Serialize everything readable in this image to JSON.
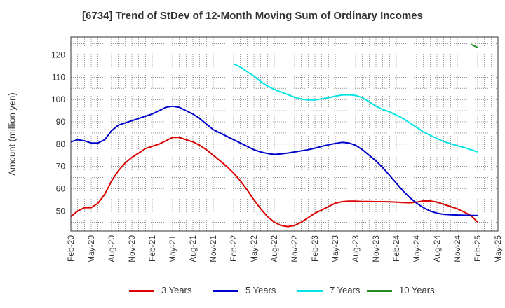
{
  "chart_data": {
    "type": "line",
    "title": "[6734]  Trend of StDev of 12-Month Moving Sum of Ordinary Incomes",
    "xlabel": "",
    "ylabel": "Amount (million yen)",
    "ylim": [
      41,
      128
    ],
    "y_ticks": [
      50,
      60,
      70,
      80,
      90,
      100,
      110,
      120
    ],
    "x_range": [
      "2020-02",
      "2025-05"
    ],
    "x_tick_labels": [
      "Feb-20",
      "May-20",
      "Aug-20",
      "Nov-20",
      "Feb-21",
      "May-21",
      "Aug-21",
      "Nov-21",
      "Feb-22",
      "May-22",
      "Aug-22",
      "Nov-22",
      "Feb-23",
      "May-23",
      "Aug-23",
      "Nov-23",
      "Feb-24",
      "May-24",
      "Aug-24",
      "Nov-24",
      "Feb-25",
      "May-25"
    ],
    "grid": true,
    "legend_position": "bottom",
    "series": [
      {
        "name": "3 Years",
        "color": "#dd0000",
        "x": [
          "2020-02",
          "2020-03",
          "2020-04",
          "2020-05",
          "2020-06",
          "2020-07",
          "2020-08",
          "2020-09",
          "2020-10",
          "2020-11",
          "2020-12",
          "2021-01",
          "2021-02",
          "2021-03",
          "2021-04",
          "2021-05",
          "2021-06",
          "2021-07",
          "2021-08",
          "2021-09",
          "2021-10",
          "2021-11",
          "2021-12",
          "2022-01",
          "2022-02",
          "2022-03",
          "2022-04",
          "2022-05",
          "2022-06",
          "2022-07",
          "2022-08",
          "2022-09",
          "2022-10",
          "2022-11",
          "2022-12",
          "2023-01",
          "2023-02",
          "2023-03",
          "2023-04",
          "2023-05",
          "2023-06",
          "2023-07",
          "2023-08",
          "2023-09",
          "2023-10",
          "2023-11",
          "2023-12",
          "2024-01",
          "2024-02",
          "2024-03",
          "2024-04",
          "2024-05",
          "2024-06",
          "2024-07",
          "2024-08",
          "2024-09",
          "2024-10",
          "2024-11",
          "2024-12",
          "2025-01",
          "2025-02"
        ],
        "values": [
          47.5,
          50,
          51.5,
          51.5,
          53.5,
          57.5,
          63.5,
          68,
          71.5,
          74,
          76,
          78,
          79,
          80,
          81.5,
          83,
          83,
          82,
          81,
          79.5,
          77.5,
          75,
          72.5,
          70,
          67,
          63.5,
          59.5,
          55,
          51,
          47.5,
          45,
          43.5,
          43,
          43.5,
          45,
          47,
          49,
          50.5,
          52,
          53.5,
          54.2,
          54.4,
          54.4,
          54.3,
          54.3,
          54.2,
          54.2,
          54.1,
          54,
          53.8,
          53.7,
          54,
          54.5,
          54.5,
          54,
          53,
          52,
          51,
          49.5,
          48,
          45
        ]
      },
      {
        "name": "5 Years",
        "color": "#0000cc",
        "x": [
          "2020-02",
          "2020-03",
          "2020-04",
          "2020-05",
          "2020-06",
          "2020-07",
          "2020-08",
          "2020-09",
          "2020-10",
          "2020-11",
          "2020-12",
          "2021-01",
          "2021-02",
          "2021-03",
          "2021-04",
          "2021-05",
          "2021-06",
          "2021-07",
          "2021-08",
          "2021-09",
          "2021-10",
          "2021-11",
          "2021-12",
          "2022-01",
          "2022-02",
          "2022-03",
          "2022-04",
          "2022-05",
          "2022-06",
          "2022-07",
          "2022-08",
          "2022-09",
          "2022-10",
          "2022-11",
          "2022-12",
          "2023-01",
          "2023-02",
          "2023-03",
          "2023-04",
          "2023-05",
          "2023-06",
          "2023-07",
          "2023-08",
          "2023-09",
          "2023-10",
          "2023-11",
          "2023-12",
          "2024-01",
          "2024-02",
          "2024-03",
          "2024-04",
          "2024-05",
          "2024-06",
          "2024-07",
          "2024-08",
          "2024-09",
          "2024-10",
          "2024-11",
          "2024-12",
          "2025-01",
          "2025-02"
        ],
        "values": [
          81,
          82,
          81.5,
          80.5,
          80.5,
          82,
          86,
          88.5,
          89.5,
          90.5,
          91.5,
          92.5,
          93.5,
          95,
          96.5,
          97,
          96.5,
          95,
          93.5,
          91.5,
          89,
          86.5,
          85,
          83.5,
          82,
          80.5,
          79,
          77.5,
          76.5,
          75.8,
          75.4,
          75.6,
          76,
          76.5,
          77,
          77.5,
          78.2,
          79,
          79.7,
          80.3,
          80.8,
          80.5,
          79.5,
          77.5,
          75,
          72.5,
          69.5,
          66,
          62.5,
          59,
          56,
          53.5,
          51.5,
          50,
          49,
          48.5,
          48.3,
          48.2,
          48.1,
          48,
          48
        ]
      },
      {
        "name": "7 Years",
        "color": "#00e5e5",
        "x": [
          "2022-02",
          "2022-03",
          "2022-04",
          "2022-05",
          "2022-06",
          "2022-07",
          "2022-08",
          "2022-09",
          "2022-10",
          "2022-11",
          "2022-12",
          "2023-01",
          "2023-02",
          "2023-03",
          "2023-04",
          "2023-05",
          "2023-06",
          "2023-07",
          "2023-08",
          "2023-09",
          "2023-10",
          "2023-11",
          "2023-12",
          "2024-01",
          "2024-02",
          "2024-03",
          "2024-04",
          "2024-05",
          "2024-06",
          "2024-07",
          "2024-08",
          "2024-09",
          "2024-10",
          "2024-11",
          "2024-12",
          "2025-01",
          "2025-02"
        ],
        "values": [
          116,
          114.5,
          112.5,
          110.5,
          108,
          106,
          104.5,
          103.3,
          102.2,
          101,
          100.2,
          99.8,
          99.8,
          100.3,
          100.8,
          101.5,
          102,
          102.1,
          101.8,
          100.8,
          99,
          97,
          95.5,
          94.5,
          93,
          91.5,
          89.5,
          87.5,
          85.5,
          84,
          82.5,
          81.2,
          80.2,
          79.3,
          78.5,
          77.5,
          76.5
        ]
      },
      {
        "name": "10 Years",
        "color": "#228b22",
        "x": [
          "2025-01",
          "2025-02"
        ],
        "values": [
          124.8,
          123.3
        ]
      }
    ]
  }
}
